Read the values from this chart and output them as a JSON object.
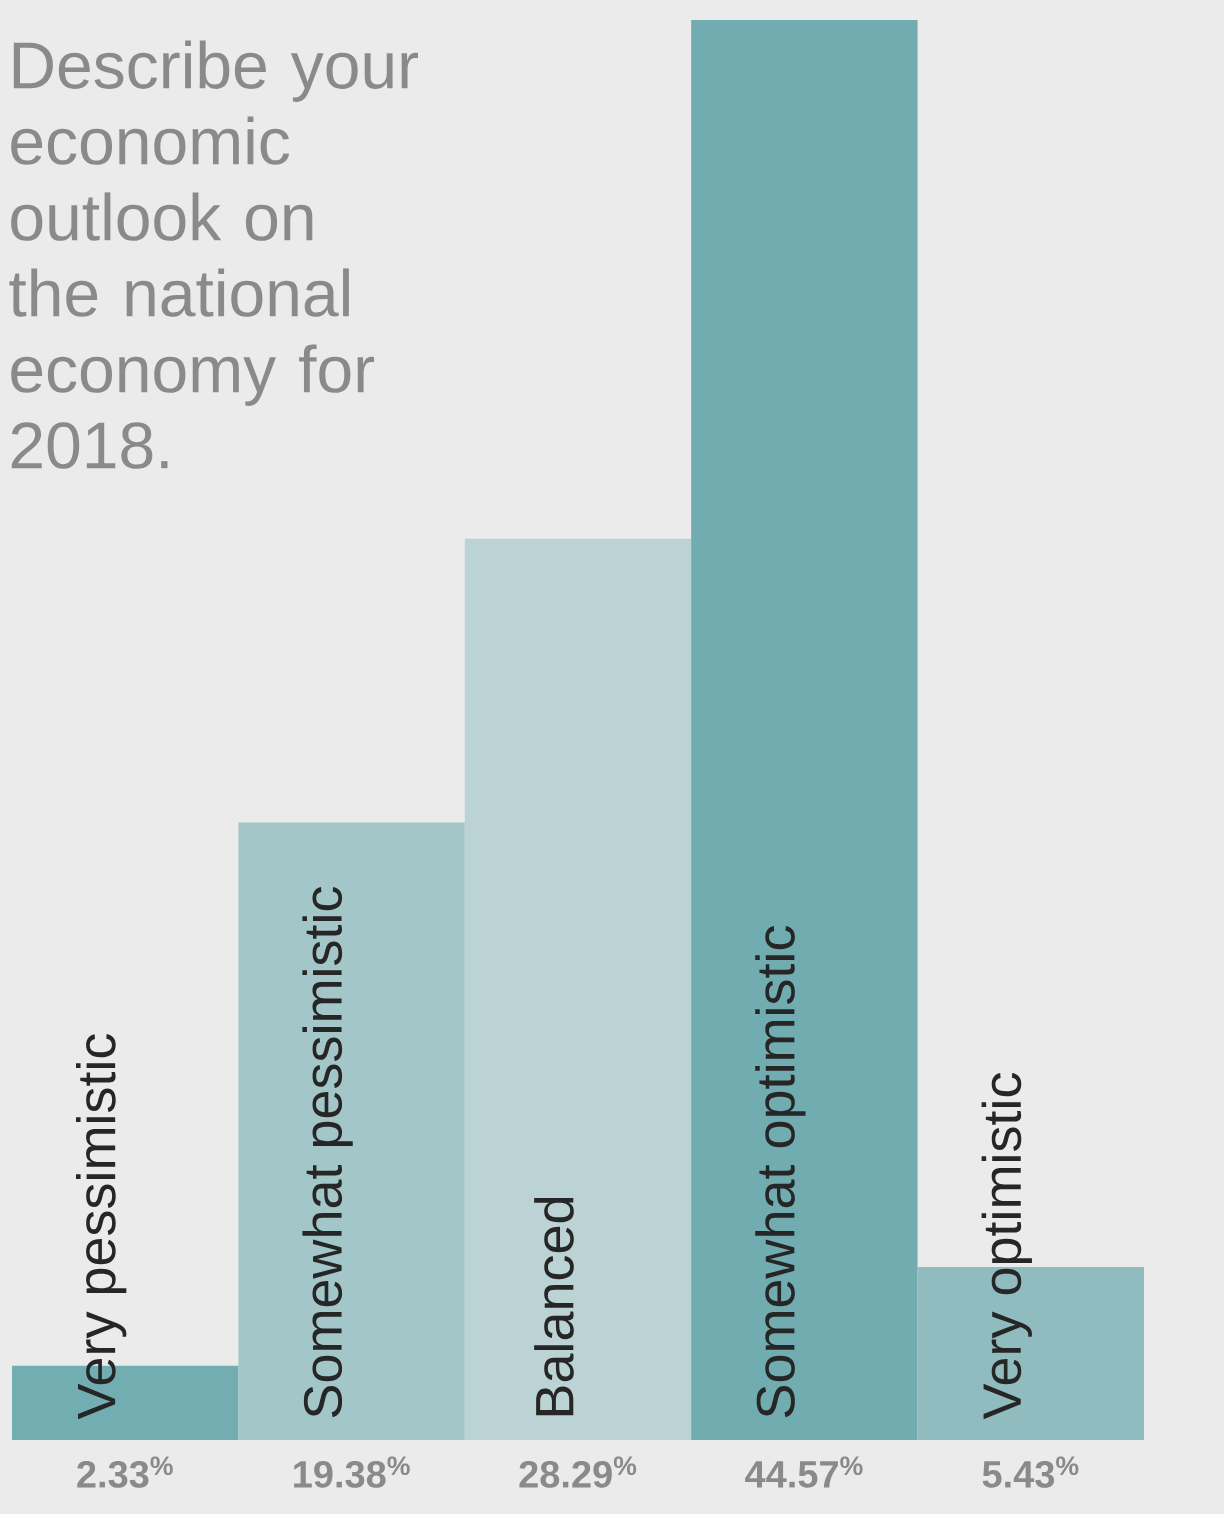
{
  "chart_data": {
    "type": "bar",
    "title": "Describe your economic outlook on the national economy for 2018.",
    "categories": [
      "Very pessimistic",
      "Somewhat pessimistic",
      "Balanced",
      "Somewhat optimistic",
      "Very optimistic"
    ],
    "values": [
      2.33,
      19.38,
      28.29,
      44.57,
      5.43
    ],
    "value_labels": [
      "2.33$^{%}$",
      "19.38$^{%}$",
      "28.29$^{%}$",
      "44.57$^{%}$",
      "5.43$^{%}$"
    ],
    "colors": [
      "#72aeb1",
      "#a3c6c9",
      "#bcd3d6",
      "#70acb0",
      "#90bcbf"
    ]
  }
}
